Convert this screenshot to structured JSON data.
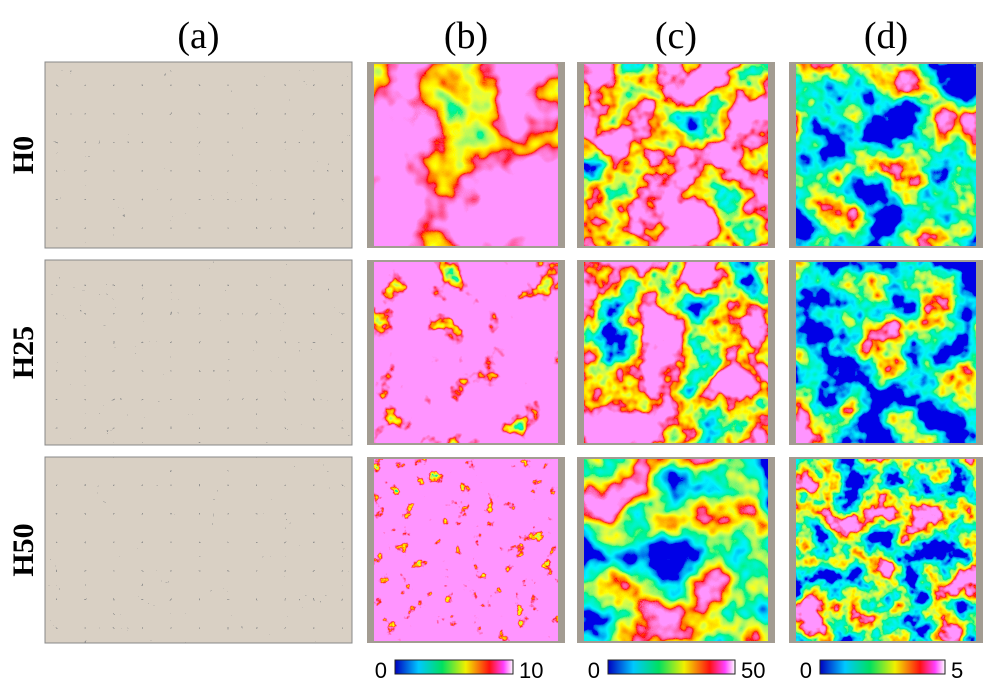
{
  "columns": [
    "(a)",
    "(b)",
    "(c)",
    "(d)"
  ],
  "rows": [
    "H0",
    "H25",
    "H50"
  ],
  "colorbars": [
    {
      "min": 0,
      "max": 10
    },
    {
      "min": 0,
      "max": 50
    },
    {
      "min": 0,
      "max": 5
    }
  ]
}
